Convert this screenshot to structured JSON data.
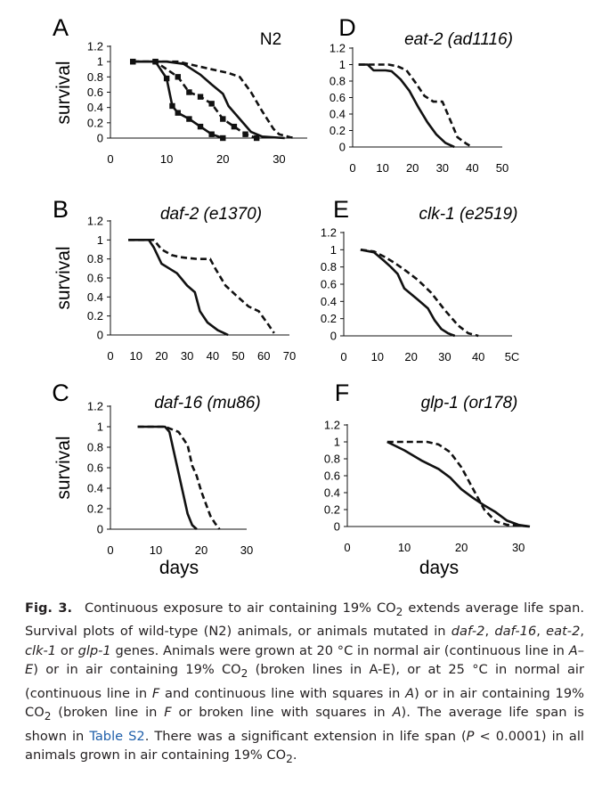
{
  "panels": [
    {
      "letter": "A",
      "title": "N2",
      "italic": false,
      "ylabel": "survival",
      "xlabel": "",
      "yticks": [
        "1.2",
        "1",
        "0.8",
        "0.6",
        "0.4",
        "0.2",
        "0"
      ],
      "xticks": [
        "0",
        "10",
        "20",
        "30"
      ]
    },
    {
      "letter": "B",
      "title": "daf-2 (e1370)",
      "italic": true,
      "ylabel": "survival",
      "xlabel": "",
      "yticks": [
        "1.2",
        "1",
        "0.8",
        "0.6",
        "0.4",
        "0.2",
        "0"
      ],
      "xticks": [
        "0",
        "10",
        "20",
        "30",
        "40",
        "50",
        "60",
        "70"
      ]
    },
    {
      "letter": "C",
      "title": "daf-16 (mu86)",
      "italic": true,
      "ylabel": "survival",
      "xlabel": "days",
      "yticks": [
        "1.2",
        "1",
        "0.8",
        "0.6",
        "0.4",
        "0.2",
        "0"
      ],
      "xticks": [
        "0",
        "10",
        "20",
        "30"
      ]
    },
    {
      "letter": "D",
      "title": "eat-2 (ad1116)",
      "italic": true,
      "ylabel": "",
      "xlabel": "",
      "yticks": [
        "1.2",
        "1",
        "0.8",
        "0.6",
        "0.4",
        "0.2",
        "0"
      ],
      "xticks": [
        "0",
        "10",
        "20",
        "30",
        "40",
        "50"
      ]
    },
    {
      "letter": "E",
      "title": "clk-1 (e2519)",
      "italic": true,
      "ylabel": "",
      "xlabel": "",
      "yticks": [
        "1.2",
        "1",
        "0.8",
        "0.6",
        "0.4",
        "0.2",
        "0"
      ],
      "xticks": [
        "0",
        "10",
        "20",
        "30",
        "40",
        "5C"
      ]
    },
    {
      "letter": "F",
      "title": "glp-1 (or178)",
      "italic": true,
      "ylabel": "",
      "xlabel": "days",
      "yticks": [
        "1.2",
        "1",
        "0.8",
        "0.6",
        "0.4",
        "0.2",
        "0"
      ],
      "xticks": [
        "0",
        "10",
        "20",
        "30"
      ]
    }
  ],
  "chart_data": [
    {
      "type": "line",
      "panel": "A",
      "xlim": [
        0,
        35
      ],
      "ylim": [
        0,
        1.2
      ],
      "series": [
        {
          "style": "solid-squares",
          "points": [
            [
              4,
              1
            ],
            [
              8,
              1
            ],
            [
              10,
              0.78
            ],
            [
              11,
              0.42
            ],
            [
              12,
              0.33
            ],
            [
              14,
              0.25
            ],
            [
              16,
              0.15
            ],
            [
              18,
              0.05
            ],
            [
              20,
              0
            ]
          ]
        },
        {
          "style": "dashed-squares",
          "points": [
            [
              4,
              1
            ],
            [
              8,
              1
            ],
            [
              12,
              0.8
            ],
            [
              14,
              0.6
            ],
            [
              16,
              0.54
            ],
            [
              18,
              0.45
            ],
            [
              20,
              0.25
            ],
            [
              22,
              0.15
            ],
            [
              24,
              0.05
            ],
            [
              26,
              0
            ]
          ]
        },
        {
          "style": "solid",
          "points": [
            [
              4,
              1
            ],
            [
              10,
              1
            ],
            [
              13,
              0.97
            ],
            [
              16,
              0.83
            ],
            [
              18,
              0.7
            ],
            [
              20,
              0.58
            ],
            [
              21,
              0.42
            ],
            [
              23,
              0.25
            ],
            [
              25,
              0.08
            ],
            [
              27,
              0.02
            ],
            [
              31,
              0
            ]
          ]
        },
        {
          "style": "dashed",
          "points": [
            [
              4,
              1
            ],
            [
              12,
              1
            ],
            [
              15,
              0.95
            ],
            [
              18,
              0.9
            ],
            [
              21,
              0.85
            ],
            [
              23,
              0.8
            ],
            [
              25,
              0.6
            ],
            [
              27,
              0.35
            ],
            [
              29,
              0.12
            ],
            [
              30,
              0.05
            ],
            [
              32,
              0.01
            ],
            [
              33,
              0
            ]
          ]
        }
      ]
    },
    {
      "type": "line",
      "panel": "B",
      "xlim": [
        0,
        70
      ],
      "ylim": [
        0,
        1.2
      ],
      "series": [
        {
          "style": "solid",
          "points": [
            [
              7,
              1
            ],
            [
              15,
              1
            ],
            [
              17,
              0.92
            ],
            [
              20,
              0.75
            ],
            [
              23,
              0.7
            ],
            [
              26,
              0.65
            ],
            [
              30,
              0.52
            ],
            [
              33,
              0.45
            ],
            [
              35,
              0.25
            ],
            [
              38,
              0.13
            ],
            [
              42,
              0.05
            ],
            [
              46,
              0
            ]
          ]
        },
        {
          "style": "dashed",
          "points": [
            [
              7,
              1
            ],
            [
              17,
              1
            ],
            [
              20,
              0.9
            ],
            [
              24,
              0.84
            ],
            [
              27,
              0.82
            ],
            [
              30,
              0.81
            ],
            [
              34,
              0.8
            ],
            [
              39,
              0.8
            ],
            [
              41,
              0.7
            ],
            [
              45,
              0.52
            ],
            [
              49,
              0.42
            ],
            [
              54,
              0.3
            ],
            [
              58,
              0.25
            ],
            [
              62,
              0.1
            ],
            [
              64,
              0.02
            ]
          ]
        }
      ]
    },
    {
      "type": "line",
      "panel": "C",
      "xlim": [
        0,
        30
      ],
      "ylim": [
        0,
        1.2
      ],
      "series": [
        {
          "style": "solid",
          "points": [
            [
              6,
              1
            ],
            [
              12,
              1
            ],
            [
              13,
              0.95
            ],
            [
              14,
              0.75
            ],
            [
              15,
              0.55
            ],
            [
              16,
              0.35
            ],
            [
              17,
              0.15
            ],
            [
              18,
              0.04
            ],
            [
              19,
              0
            ]
          ]
        },
        {
          "style": "dashed",
          "points": [
            [
              6,
              1
            ],
            [
              12,
              1
            ],
            [
              15,
              0.95
            ],
            [
              17,
              0.82
            ],
            [
              18,
              0.62
            ],
            [
              19,
              0.52
            ],
            [
              20,
              0.37
            ],
            [
              21,
              0.25
            ],
            [
              22,
              0.13
            ],
            [
              23,
              0.06
            ],
            [
              24,
              0
            ]
          ]
        }
      ]
    },
    {
      "type": "line",
      "panel": "D",
      "xlim": [
        0,
        50
      ],
      "ylim": [
        0,
        1.2
      ],
      "series": [
        {
          "style": "solid",
          "points": [
            [
              2,
              1
            ],
            [
              5,
              1
            ],
            [
              7,
              0.93
            ],
            [
              11,
              0.93
            ],
            [
              13,
              0.92
            ],
            [
              16,
              0.82
            ],
            [
              19,
              0.68
            ],
            [
              22,
              0.48
            ],
            [
              25,
              0.3
            ],
            [
              28,
              0.15
            ],
            [
              31,
              0.05
            ],
            [
              34,
              0
            ]
          ]
        },
        {
          "style": "dashed",
          "points": [
            [
              2,
              1
            ],
            [
              6,
              1
            ],
            [
              12,
              1
            ],
            [
              15,
              0.98
            ],
            [
              18,
              0.93
            ],
            [
              21,
              0.78
            ],
            [
              24,
              0.62
            ],
            [
              27,
              0.55
            ],
            [
              30,
              0.55
            ],
            [
              32,
              0.38
            ],
            [
              35,
              0.12
            ],
            [
              38,
              0.04
            ],
            [
              40,
              0
            ]
          ]
        }
      ]
    },
    {
      "type": "line",
      "panel": "E",
      "xlim": [
        0,
        50
      ],
      "ylim": [
        0,
        1.2
      ],
      "series": [
        {
          "style": "solid",
          "points": [
            [
              5,
              1
            ],
            [
              9,
              0.97
            ],
            [
              12,
              0.87
            ],
            [
              14,
              0.8
            ],
            [
              16,
              0.72
            ],
            [
              18,
              0.55
            ],
            [
              22,
              0.42
            ],
            [
              25,
              0.32
            ],
            [
              27,
              0.18
            ],
            [
              29,
              0.08
            ],
            [
              31,
              0.03
            ],
            [
              33,
              0
            ]
          ]
        },
        {
          "style": "dashed",
          "points": [
            [
              5,
              1
            ],
            [
              9,
              0.98
            ],
            [
              12,
              0.92
            ],
            [
              15,
              0.85
            ],
            [
              18,
              0.77
            ],
            [
              22,
              0.65
            ],
            [
              26,
              0.5
            ],
            [
              30,
              0.3
            ],
            [
              34,
              0.12
            ],
            [
              37,
              0.03
            ],
            [
              40,
              0
            ]
          ]
        }
      ]
    },
    {
      "type": "line",
      "panel": "F",
      "xlim": [
        0,
        32
      ],
      "ylim": [
        0,
        1.2
      ],
      "series": [
        {
          "style": "solid",
          "points": [
            [
              7,
              1
            ],
            [
              10,
              0.9
            ],
            [
              13,
              0.78
            ],
            [
              16,
              0.68
            ],
            [
              18,
              0.58
            ],
            [
              20,
              0.44
            ],
            [
              22,
              0.34
            ],
            [
              24,
              0.25
            ],
            [
              26,
              0.17
            ],
            [
              28,
              0.07
            ],
            [
              30,
              0.02
            ],
            [
              32,
              0
            ]
          ]
        },
        {
          "style": "dashed",
          "points": [
            [
              7,
              1
            ],
            [
              14,
              1
            ],
            [
              16,
              0.97
            ],
            [
              18,
              0.88
            ],
            [
              20,
              0.7
            ],
            [
              22,
              0.45
            ],
            [
              24,
              0.2
            ],
            [
              26,
              0.06
            ],
            [
              28,
              0.02
            ],
            [
              30,
              0.01
            ],
            [
              32,
              0
            ]
          ]
        }
      ]
    }
  ],
  "caption": {
    "fig_label": "Fig. 3.",
    "s1": "Continuous exposure to air containing 19% CO",
    "s2": " extends average life span. Survival plots of wild-type (N2) animals, or animals mutated in ",
    "g1": "daf-2",
    "c1": ", ",
    "g2": "daf-16",
    "c2": ", ",
    "g3": "eat-2",
    "c3": ", ",
    "g4": "clk-1",
    "c4": " or ",
    "g5": "glp-1",
    "s3": " genes. Animals were grown at 20 °C in normal air (continuous line in ",
    "r1": "A–E",
    "s4": ") or in air containing 19% CO",
    "s5": " (broken lines in A-E), or at 25 °C in normal air (continuous line in ",
    "r2": "F",
    "s6": " and continuous line with squares in ",
    "r3": "A",
    "s7": ") or in air containing 19% CO",
    "s8": " (broken line in ",
    "r4": "F",
    "s9": " or broken line with squares in ",
    "r5": "A",
    "s10": "). The average life span is shown in ",
    "link": "Table S2",
    "s11": ". There was a significant extension in life span (",
    "p": "P",
    "s12": " < 0.0001) in all animals grown in air containing 19% CO",
    "s13": ".",
    "sub": "2"
  }
}
